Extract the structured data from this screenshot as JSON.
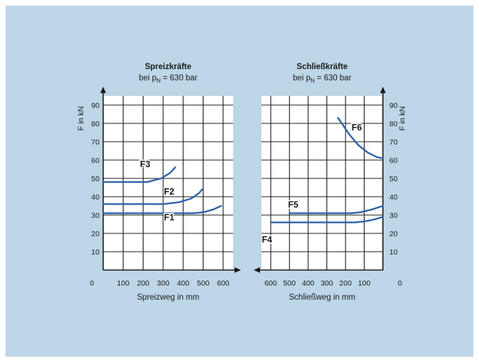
{
  "colors": {
    "panel": "#bdd6e8",
    "plot": "#ffffff",
    "grid": "#1a1a1a",
    "curve": "#2f62a8"
  },
  "chart_data": [
    {
      "type": "line",
      "title": "Spreizkräfte",
      "subtitle_prefix": "bei p",
      "subtitle_sub": "N",
      "subtitle_suffix": " = 630 bar",
      "xlabel": "Spreizweg in mm",
      "ylabel": "F in kN",
      "xlim": [
        0,
        650
      ],
      "ylim": [
        0,
        95
      ],
      "x_ticks": [
        "0",
        "100",
        "200",
        "300",
        "400",
        "500",
        "600"
      ],
      "x_tick_values": [
        0,
        100,
        200,
        300,
        400,
        500,
        600
      ],
      "y_ticks": [
        "10",
        "20",
        "30",
        "40",
        "50",
        "60",
        "70",
        "80",
        "90"
      ],
      "y_tick_values": [
        10,
        20,
        30,
        40,
        50,
        60,
        70,
        80,
        90
      ],
      "grid": true,
      "series": [
        {
          "name": "F1",
          "label_at": [
            330,
            29
          ],
          "points": [
            [
              0,
              31
            ],
            [
              450,
              31
            ],
            [
              500,
              31.5
            ],
            [
              550,
              33
            ],
            [
              590,
              35
            ]
          ]
        },
        {
          "name": "F2",
          "label_at": [
            330,
            43
          ],
          "points": [
            [
              0,
              36
            ],
            [
              300,
              36
            ],
            [
              380,
              37
            ],
            [
              440,
              39
            ],
            [
              480,
              42
            ],
            [
              495,
              44
            ]
          ]
        },
        {
          "name": "F3",
          "label_at": [
            210,
            58
          ],
          "points": [
            [
              0,
              48
            ],
            [
              220,
              48
            ],
            [
              290,
              50
            ],
            [
              335,
              53
            ],
            [
              360,
              56
            ]
          ]
        }
      ]
    },
    {
      "type": "line",
      "title": "Schließkräfte",
      "subtitle_prefix": "bei p",
      "subtitle_sub": "N",
      "subtitle_suffix": " = 630 bar",
      "xlabel": "Schließweg in mm",
      "ylabel": "F in kN",
      "x_reversed": true,
      "xlim": [
        0,
        650
      ],
      "ylim": [
        0,
        95
      ],
      "x_ticks": [
        "600",
        "500",
        "400",
        "300",
        "200",
        "100",
        "0"
      ],
      "x_tick_values": [
        600,
        500,
        400,
        300,
        200,
        100,
        0
      ],
      "y_ticks": [
        "10",
        "20",
        "30",
        "40",
        "50",
        "60",
        "70",
        "80",
        "90"
      ],
      "y_tick_values": [
        10,
        20,
        30,
        40,
        50,
        60,
        70,
        80,
        90
      ],
      "grid": true,
      "series": [
        {
          "name": "F4",
          "label_at": [
            620,
            17
          ],
          "points": [
            [
              600,
              26
            ],
            [
              150,
              26
            ],
            [
              100,
              26.5
            ],
            [
              50,
              27.5
            ],
            [
              0,
              29
            ]
          ]
        },
        {
          "name": "F5",
          "label_at": [
            480,
            36
          ],
          "points": [
            [
              500,
              31
            ],
            [
              170,
              31
            ],
            [
              120,
              31.5
            ],
            [
              60,
              33
            ],
            [
              0,
              35
            ]
          ]
        },
        {
          "name": "F6",
          "label_at": [
            140,
            78
          ],
          "points": [
            [
              240,
              83
            ],
            [
              220,
              80
            ],
            [
              180,
              74
            ],
            [
              130,
              68
            ],
            [
              80,
              64
            ],
            [
              30,
              61.5
            ],
            [
              0,
              61
            ]
          ]
        }
      ]
    }
  ]
}
